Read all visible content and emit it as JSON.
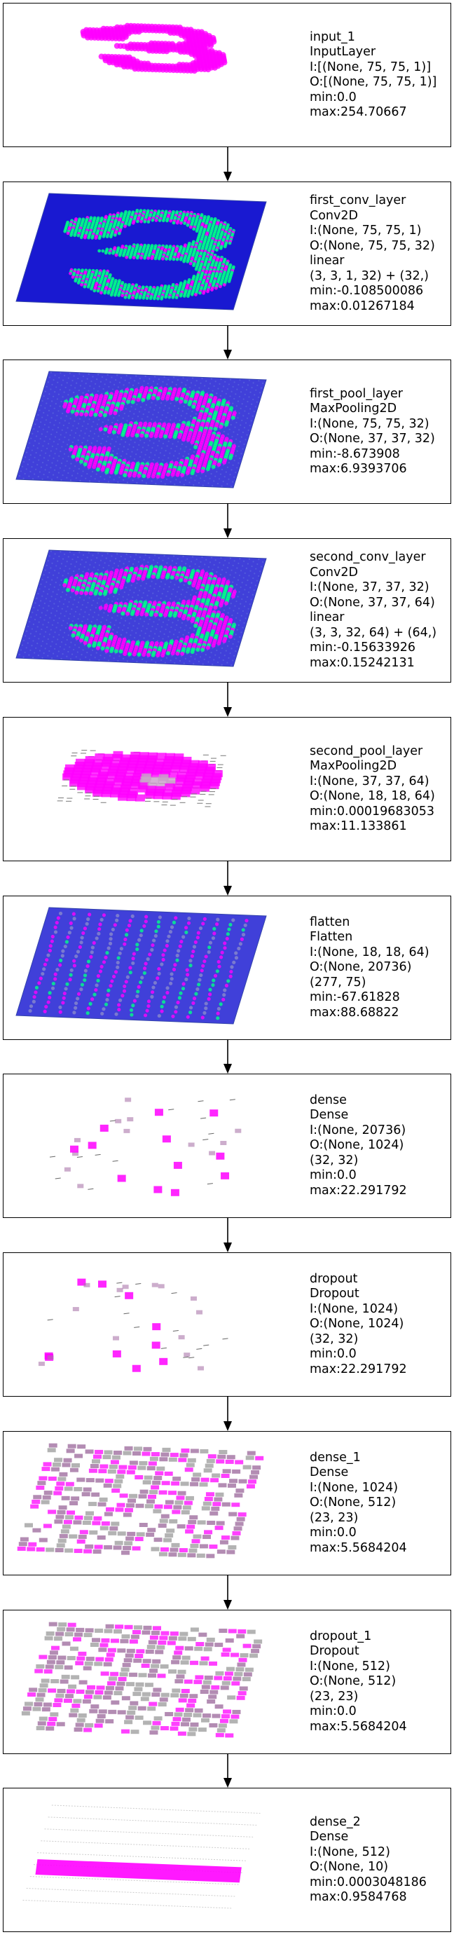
{
  "colors": {
    "positive": "#ff00ff",
    "negative": "#00ff88",
    "base": "#0000cc",
    "grid": "#555577"
  },
  "layers": [
    {
      "name": "input_1",
      "type": "InputLayer",
      "lines": [
        "I:[(None, 75, 75, 1)]",
        "O:[(None, 75, 75, 1)]",
        "min:0.0",
        "max:254.70667"
      ],
      "viz": "input"
    },
    {
      "name": "first_conv_layer",
      "type": "Conv2D",
      "lines": [
        "I:(None, 75, 75, 1)",
        "O:(None, 75, 75, 32)",
        "linear",
        "(3, 3, 1, 32) + (32,)",
        "min:-0.108500086",
        "max:0.01267184"
      ],
      "viz": "conv1"
    },
    {
      "name": "first_pool_layer",
      "type": "MaxPooling2D",
      "lines": [
        "I:(None, 75, 75, 32)",
        "O:(None, 37, 37, 32)",
        "min:-8.673908",
        "max:6.9393706"
      ],
      "viz": "pool1"
    },
    {
      "name": "second_conv_layer",
      "type": "Conv2D",
      "lines": [
        "I:(None, 37, 37, 32)",
        "O:(None, 37, 37, 64)",
        "linear",
        "(3, 3, 32, 64) + (64,)",
        "min:-0.15633926",
        "max:0.15242131"
      ],
      "viz": "conv2"
    },
    {
      "name": "second_pool_layer",
      "type": "MaxPooling2D",
      "lines": [
        "I:(None, 37, 37, 64)",
        "O:(None, 18, 18, 64)",
        "min:0.00019683053",
        "max:11.133861"
      ],
      "viz": "pool2"
    },
    {
      "name": "flatten",
      "type": "Flatten",
      "lines": [
        "I:(None, 18, 18, 64)",
        "O:(None, 20736)",
        "(277, 75)",
        "min:-67.61828",
        "max:88.68822"
      ],
      "viz": "flatten"
    },
    {
      "name": "dense",
      "type": "Dense",
      "lines": [
        "I:(None, 20736)",
        "O:(None, 1024)",
        "(32, 32)",
        "min:0.0",
        "max:22.291792"
      ],
      "viz": "dense"
    },
    {
      "name": "dropout",
      "type": "Dropout",
      "lines": [
        "I:(None, 1024)",
        "O:(None, 1024)",
        "(32, 32)",
        "min:0.0",
        "max:22.291792"
      ],
      "viz": "dense"
    },
    {
      "name": "dense_1",
      "type": "Dense",
      "lines": [
        "I:(None, 1024)",
        "O:(None, 512)",
        "(23, 23)",
        "min:0.0",
        "max:5.5684204"
      ],
      "viz": "dense1"
    },
    {
      "name": "dropout_1",
      "type": "Dropout",
      "lines": [
        "I:(None, 512)",
        "O:(None, 512)",
        "(23, 23)",
        "min:0.0",
        "max:5.5684204"
      ],
      "viz": "dense1"
    },
    {
      "name": "dense_2",
      "type": "Dense",
      "lines": [
        "I:(None, 512)",
        "O:(None, 10)",
        "min:0.0003048186",
        "max:0.9584768"
      ],
      "viz": "output"
    }
  ]
}
